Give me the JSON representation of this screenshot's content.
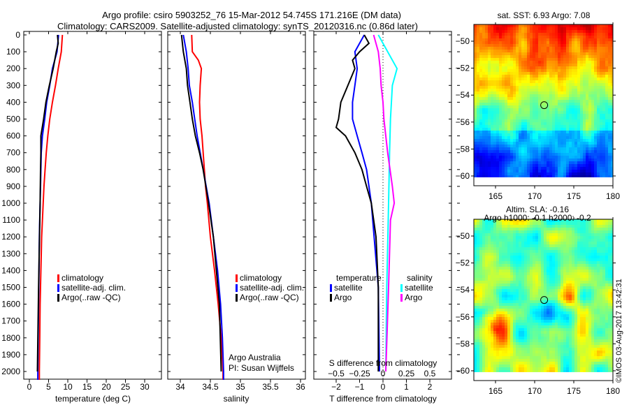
{
  "title_line1": "Argo profile: csiro 5903252_76 15-Mar-2012 54.745S 171.216E (DM data)",
  "title_line2": "Climatology: CARS2009. Satellite-adjusted climatology: synTS_20120316.nc (0.86d later)",
  "credit": "©IMOS 03-Aug-2017 13:42:31",
  "colors": {
    "climatology": "#ff0000",
    "satellite": "#0000ff",
    "argo": "#000000",
    "sal_satellite": "#00ffff",
    "sal_argo": "#ff00ff"
  },
  "chart_data": [
    {
      "type": "line",
      "xlabel": "temperature (deg C)",
      "ylim": [
        0,
        2050
      ],
      "xlim": [
        -1.5,
        32
      ],
      "xticks": [
        "0",
        "5",
        "10",
        "15",
        "20",
        "25",
        "30"
      ],
      "yticks": [
        "0",
        "100",
        "200",
        "300",
        "400",
        "500",
        "600",
        "700",
        "800",
        "900",
        "1000",
        "1100",
        "1200",
        "1300",
        "1400",
        "1500",
        "1600",
        "1700",
        "1800",
        "1900",
        "2000"
      ],
      "legend": [
        "climatology",
        "satellite-adj. clim.",
        "Argo(..raw -QC)"
      ],
      "series": [
        {
          "name": "climatology",
          "depth": [
            0,
            100,
            200,
            300,
            400,
            500,
            600,
            700,
            800,
            900,
            1000,
            1200,
            1400,
            1600,
            1800,
            2000,
            2050
          ],
          "values": [
            8.6,
            8.3,
            7.5,
            6.8,
            6.0,
            5.3,
            4.8,
            4.4,
            4.1,
            3.8,
            3.6,
            3.2,
            3.0,
            2.8,
            2.7,
            2.6,
            2.6
          ]
        },
        {
          "name": "satellite-adj. clim.",
          "depth": [
            0,
            100,
            200,
            300,
            400,
            500,
            600,
            700,
            800,
            900,
            1000,
            1200,
            1400,
            1600,
            1800,
            2000,
            2050
          ],
          "values": [
            7.6,
            7.2,
            6.0,
            5.3,
            4.5,
            4.0,
            3.4,
            3.1,
            3.0,
            2.9,
            2.8,
            2.6,
            2.5,
            2.4,
            2.3,
            2.2,
            2.2
          ]
        },
        {
          "name": "Argo(..raw -QC)",
          "depth": [
            0,
            50,
            100,
            150,
            200,
            300,
            400,
            500,
            600,
            700,
            800,
            1000,
            1500,
            2000
          ],
          "values": [
            7.3,
            7.5,
            7.0,
            6.6,
            6.2,
            5.2,
            4.3,
            3.7,
            3.0,
            3.0,
            2.9,
            2.8,
            2.4,
            2.1
          ]
        }
      ]
    },
    {
      "type": "line",
      "xlabel": "salinity",
      "ylim": [
        0,
        2050
      ],
      "xlim": [
        33.79,
        36.08
      ],
      "xticks": [
        "34",
        "34.5",
        "35",
        "35.5",
        "36"
      ],
      "legend": [
        "climatology",
        "satellite-adj. clim.",
        "Argo(..raw -QC)"
      ],
      "annotation": [
        "Argo Australia",
        "PI: Susan Wijffels"
      ],
      "series": [
        {
          "name": "climatology",
          "depth": [
            0,
            100,
            150,
            200,
            300,
            400,
            500,
            600,
            700,
            800,
            900,
            1000,
            1200,
            1400,
            1600,
            1800,
            2000,
            2050
          ],
          "values": [
            34.19,
            34.2,
            34.3,
            34.35,
            34.33,
            34.32,
            34.33,
            34.36,
            34.38,
            34.4,
            34.42,
            34.45,
            34.5,
            34.57,
            34.63,
            34.68,
            34.71,
            34.71
          ]
        },
        {
          "name": "satellite-adj. clim.",
          "depth": [
            0,
            100,
            200,
            300,
            400,
            500,
            600,
            700,
            800,
            900,
            1000,
            1200,
            1400,
            1600,
            1800,
            2000,
            2050
          ],
          "values": [
            34.05,
            34.1,
            34.13,
            34.15,
            34.2,
            34.24,
            34.28,
            34.33,
            34.38,
            34.43,
            34.48,
            34.55,
            34.62,
            34.67,
            34.7,
            34.72,
            34.72
          ]
        },
        {
          "name": "Argo(..raw -QC)",
          "depth": [
            0,
            100,
            200,
            300,
            400,
            500,
            600,
            700,
            800,
            1000,
            1200,
            1400,
            1600,
            2000
          ],
          "values": [
            34.02,
            34.05,
            34.1,
            34.12,
            34.16,
            34.2,
            34.25,
            34.32,
            34.38,
            34.47,
            34.55,
            34.6,
            34.65,
            34.68
          ]
        }
      ]
    },
    {
      "type": "line",
      "xlabel": "T difference from climatology",
      "x2label": "S difference from climatology",
      "ylim": [
        0,
        2050
      ],
      "xlim": [
        -2.95,
        2.93
      ],
      "xticks": [
        "-2",
        "-1",
        "0",
        "1",
        "2"
      ],
      "x2ticks": [
        "-0.5",
        "-0.25",
        "0",
        "0.25",
        "0.5"
      ],
      "legend_t": {
        "title": "temperature",
        "items": [
          "satellite",
          "Argo"
        ]
      },
      "legend_s": {
        "title": "salinity",
        "items": [
          "satellite",
          "Argo"
        ]
      },
      "series": [
        {
          "name": "T satellite",
          "depth": [
            0,
            100,
            200,
            300,
            400,
            500,
            600,
            700,
            800,
            1000,
            1500,
            2000
          ],
          "values": [
            -0.8,
            -1.2,
            -1.1,
            -1.2,
            -1.3,
            -1.3,
            -1.1,
            -0.9,
            -0.7,
            -0.5,
            -0.2,
            -0.15
          ]
        },
        {
          "name": "T Argo",
          "depth": [
            0,
            50,
            100,
            150,
            200,
            300,
            400,
            500,
            550,
            600,
            700,
            800,
            900,
            1000,
            1200,
            1500,
            2000
          ],
          "values": [
            -0.8,
            -0.6,
            -1.0,
            -1.3,
            -1.2,
            -1.5,
            -1.8,
            -1.9,
            -2.0,
            -1.6,
            -1.2,
            -0.9,
            -0.7,
            -0.5,
            -0.3,
            -0.2,
            -0.2
          ]
        },
        {
          "name": "S satellite",
          "depth": [
            0,
            100,
            200,
            300,
            500,
            700,
            1000,
            1500,
            2000
          ],
          "values": [
            -0.05,
            0.05,
            0.15,
            0.1,
            0.08,
            0.07,
            0.06,
            0.04,
            0.03
          ]
        },
        {
          "name": "S Argo",
          "depth": [
            0,
            100,
            200,
            300,
            400,
            500,
            700,
            900,
            1000,
            1100,
            1500,
            2000
          ],
          "values": [
            -0.1,
            -0.05,
            -0.03,
            -0.02,
            0.0,
            0.01,
            0.05,
            0.1,
            0.12,
            0.08,
            0.06,
            0.03
          ]
        }
      ]
    },
    {
      "type": "heatmap",
      "title": "sat. SST: 6.93 Argo: 7.08",
      "xticks": [
        "165",
        "170",
        "175",
        "180"
      ],
      "yticks": [
        "-50",
        "-52",
        "-54",
        "-56",
        "-58",
        "-60"
      ],
      "marker": {
        "lon": 171.216,
        "lat": -54.745
      }
    },
    {
      "type": "heatmap",
      "title": "Altim. SLA: -0.16",
      "subtitle": "Argo h1000: -0.1 h2000: -0.2",
      "xticks": [
        "165",
        "170",
        "175",
        "180"
      ],
      "yticks": [
        "-50",
        "-52",
        "-54",
        "-56",
        "-58",
        "-60"
      ],
      "marker": {
        "lon": 171.216,
        "lat": -54.745
      }
    }
  ]
}
